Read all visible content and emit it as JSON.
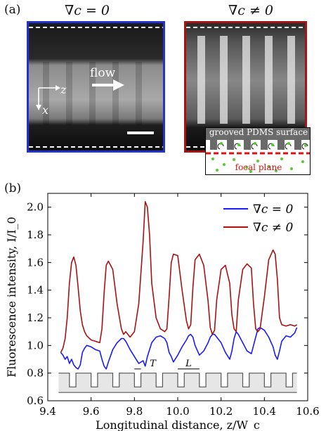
{
  "panel_a": {
    "label": "(a)",
    "left_title": "∇c = 0",
    "right_title": "∇c ≠ 0",
    "flow_label": "flow",
    "axis_z": "z",
    "axis_x": "x",
    "inset_top_label": "grooved PDMS surface",
    "inset_bottom_label": "focal plane",
    "colors": {
      "left_frame": "#2233cc",
      "right_frame": "#a31515",
      "focal_line": "#dd1111",
      "particles": "#55cc33"
    }
  },
  "panel_b": {
    "label": "(b)"
  },
  "chart_data": {
    "type": "line",
    "xlabel": "Longitudinal distance,  z/W_c",
    "ylabel": "Fluorescence intensity,  I/I_0",
    "xlim": [
      9.4,
      10.6
    ],
    "ylim": [
      0.6,
      2.1
    ],
    "xticks": [
      9.4,
      9.6,
      9.8,
      10.0,
      10.2,
      10.4,
      10.6
    ],
    "yticks": [
      0.6,
      0.8,
      1.0,
      1.2,
      1.4,
      1.6,
      1.8,
      2.0
    ],
    "xtick_labels": [
      "9.4",
      "9.6",
      "9.8",
      "10.0",
      "10.2",
      "10.4",
      "10.6"
    ],
    "ytick_labels": [
      "0.6",
      "0.8",
      "1.0",
      "1.2",
      "1.4",
      "1.6",
      "1.8",
      "2.0"
    ],
    "legend_position": "top-right",
    "annotations": {
      "period": "T",
      "length": "L"
    },
    "series": [
      {
        "name": "∇c = 0",
        "color": "#1a1aff",
        "x": [
          9.46,
          9.47,
          9.48,
          9.49,
          9.5,
          9.51,
          9.52,
          9.53,
          9.54,
          9.55,
          9.56,
          9.57,
          9.58,
          9.6,
          9.62,
          9.64,
          9.65,
          9.66,
          9.67,
          9.68,
          9.7,
          9.72,
          9.74,
          9.75,
          9.76,
          9.77,
          9.78,
          9.8,
          9.82,
          9.84,
          9.85,
          9.86,
          9.87,
          9.88,
          9.9,
          9.92,
          9.94,
          9.95,
          9.96,
          9.97,
          9.98,
          10.0,
          10.02,
          10.04,
          10.05,
          10.06,
          10.07,
          10.08,
          10.1,
          10.12,
          10.14,
          10.15,
          10.16,
          10.17,
          10.18,
          10.2,
          10.22,
          10.24,
          10.25,
          10.26,
          10.27,
          10.28,
          10.3,
          10.32,
          10.34,
          10.35,
          10.36,
          10.37,
          10.38,
          10.4,
          10.42,
          10.44,
          10.45,
          10.46,
          10.47,
          10.48,
          10.5,
          10.52,
          10.54,
          10.55
        ],
        "values": [
          0.95,
          0.93,
          0.9,
          0.92,
          0.87,
          0.9,
          0.86,
          0.84,
          0.83,
          0.86,
          0.95,
          0.98,
          1.0,
          0.99,
          0.97,
          0.96,
          0.9,
          0.85,
          0.83,
          0.88,
          0.97,
          1.02,
          1.05,
          1.05,
          1.03,
          1.0,
          0.97,
          0.92,
          0.87,
          0.89,
          0.85,
          0.92,
          0.97,
          1.02,
          1.06,
          1.07,
          1.05,
          1.02,
          0.95,
          0.92,
          0.88,
          0.93,
          0.99,
          1.04,
          1.07,
          1.08,
          1.06,
          1.0,
          0.93,
          0.96,
          1.02,
          1.06,
          1.08,
          1.08,
          1.06,
          1.02,
          0.95,
          0.9,
          0.96,
          1.05,
          1.1,
          1.08,
          1.02,
          0.96,
          0.94,
          1.0,
          1.06,
          1.12,
          1.13,
          1.11,
          1.06,
          0.99,
          0.93,
          0.9,
          0.96,
          1.03,
          1.07,
          1.06,
          1.09,
          1.13
        ]
      },
      {
        "name": "∇c ≠ 0",
        "color": "#aa1111",
        "x": [
          9.46,
          9.47,
          9.48,
          9.49,
          9.5,
          9.51,
          9.52,
          9.53,
          9.54,
          9.55,
          9.56,
          9.57,
          9.58,
          9.6,
          9.62,
          9.64,
          9.65,
          9.66,
          9.67,
          9.68,
          9.7,
          9.72,
          9.74,
          9.75,
          9.76,
          9.77,
          9.78,
          9.8,
          9.82,
          9.84,
          9.85,
          9.86,
          9.87,
          9.88,
          9.9,
          9.92,
          9.94,
          9.95,
          9.96,
          9.97,
          9.98,
          10.0,
          10.02,
          10.04,
          10.05,
          10.06,
          10.07,
          10.08,
          10.1,
          10.12,
          10.14,
          10.15,
          10.16,
          10.17,
          10.18,
          10.2,
          10.22,
          10.24,
          10.25,
          10.26,
          10.27,
          10.28,
          10.3,
          10.32,
          10.34,
          10.35,
          10.36,
          10.37,
          10.38,
          10.4,
          10.42,
          10.44,
          10.45,
          10.46,
          10.47,
          10.48,
          10.5,
          10.52,
          10.54,
          10.55
        ],
        "values": [
          0.95,
          0.98,
          1.05,
          1.2,
          1.45,
          1.6,
          1.64,
          1.58,
          1.42,
          1.25,
          1.15,
          1.1,
          1.07,
          1.04,
          1.03,
          1.02,
          1.12,
          1.38,
          1.58,
          1.61,
          1.55,
          1.3,
          1.12,
          1.08,
          1.1,
          1.08,
          1.06,
          1.1,
          1.3,
          1.75,
          2.04,
          2.0,
          1.8,
          1.45,
          1.2,
          1.12,
          1.1,
          1.12,
          1.35,
          1.6,
          1.66,
          1.65,
          1.4,
          1.18,
          1.12,
          1.15,
          1.42,
          1.62,
          1.66,
          1.58,
          1.32,
          1.13,
          1.08,
          1.11,
          1.33,
          1.55,
          1.58,
          1.45,
          1.22,
          1.12,
          1.1,
          1.33,
          1.55,
          1.59,
          1.56,
          1.3,
          1.12,
          1.1,
          1.12,
          1.35,
          1.62,
          1.69,
          1.66,
          1.48,
          1.2,
          1.15,
          1.14,
          1.15,
          1.14,
          1.15
        ]
      }
    ]
  }
}
